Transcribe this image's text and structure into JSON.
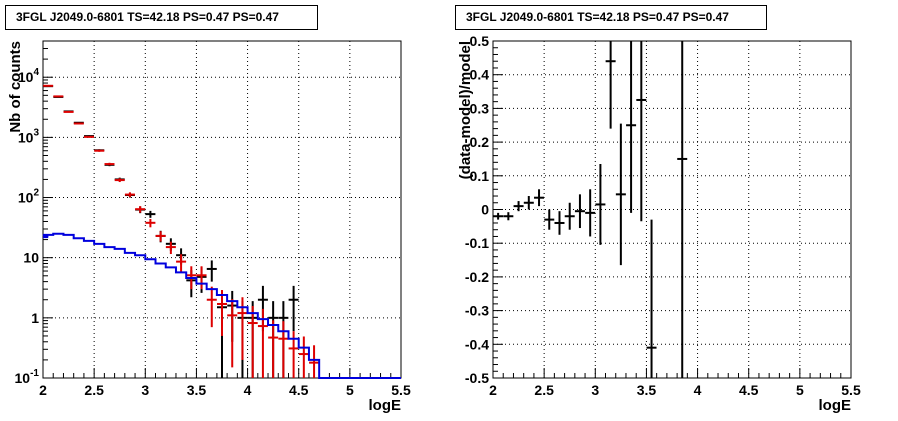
{
  "chart_data": [
    {
      "type": "line",
      "title": "3FGL J2049.0-6801 TS=42.18 PS=0.47 PS=0.47",
      "xlabel": "logE",
      "ylabel": "Nb of counts",
      "xlim": [
        2,
        5.5
      ],
      "ylim": [
        0.1,
        40000
      ],
      "yscale": "log",
      "grid": true,
      "xticks": [
        "2",
        "2.5",
        "3",
        "3.5",
        "4",
        "4.5",
        "5",
        "5.5"
      ],
      "yticks": [
        "10^{-1}",
        "1",
        "10",
        "10^{2}",
        "10^{3}",
        "10^{4}"
      ],
      "series": [
        {
          "kind": "errorbar",
          "color": "#000000",
          "x": [
            2.05,
            2.15,
            2.25,
            2.35,
            2.45,
            2.55,
            2.65,
            2.75,
            2.85,
            2.95,
            3.05,
            3.15,
            3.25,
            3.35,
            3.45,
            3.55,
            3.65,
            3.75,
            3.85,
            3.95,
            4.05,
            4.15,
            4.25,
            4.35,
            4.45
          ],
          "values": [
            7100,
            4700,
            2700,
            1750,
            1050,
            610,
            350,
            200,
            110,
            63,
            53,
            23,
            17,
            11,
            4.2,
            4.8,
            6.5,
            1.5,
            1.6,
            1.0,
            1.0,
            2.0,
            1.0,
            1.0,
            2.0
          ],
          "err_low": [
            70,
            60,
            50,
            40,
            30,
            24,
            18,
            14,
            10,
            8,
            7,
            5,
            4,
            3.3,
            2.0,
            2.2,
            2.5,
            1.5,
            1.2,
            0.9,
            0.9,
            1.4,
            0.9,
            0.9,
            1.4
          ],
          "err_high": [
            70,
            60,
            50,
            40,
            30,
            24,
            18,
            14,
            10,
            8,
            7,
            5,
            4,
            3.3,
            2.0,
            2.2,
            2.5,
            1.2,
            1.2,
            0.9,
            0.9,
            1.4,
            0.9,
            0.9,
            1.4
          ]
        },
        {
          "kind": "errorbar",
          "color": "#dd0000",
          "x": [
            2.05,
            2.15,
            2.25,
            2.35,
            2.45,
            2.55,
            2.65,
            2.75,
            2.85,
            2.95,
            3.05,
            3.15,
            3.25,
            3.35,
            3.45,
            3.55,
            3.65,
            3.75,
            3.85,
            3.95,
            4.05,
            4.15,
            4.25,
            4.35,
            4.45,
            4.55,
            4.65
          ],
          "values": [
            7200,
            4800,
            2650,
            1700,
            1020,
            600,
            360,
            195,
            112,
            64,
            38,
            23,
            15,
            8.6,
            5.1,
            5.1,
            2.0,
            1.7,
            1.1,
            1.2,
            0.82,
            0.73,
            0.47,
            0.45,
            0.31,
            0.25,
            0.18
          ],
          "err_low": [
            70,
            60,
            50,
            40,
            30,
            24,
            18,
            14,
            10,
            8,
            6,
            4.5,
            3.5,
            2.8,
            2.1,
            2.1,
            1.3,
            1.2,
            0.95,
            1.0,
            0.75,
            0.68,
            0.44,
            0.43,
            0.29,
            0.24,
            0.17
          ],
          "err_high": [
            70,
            60,
            50,
            40,
            30,
            24,
            18,
            14,
            10,
            8,
            6,
            4.5,
            3.5,
            2.8,
            2.1,
            2.1,
            1.3,
            1.2,
            0.95,
            1.0,
            0.75,
            0.68,
            0.44,
            0.43,
            0.29,
            0.24,
            0.17
          ]
        },
        {
          "kind": "step",
          "color": "#0000dd",
          "x": [
            2.0,
            2.05,
            2.15,
            2.25,
            2.35,
            2.45,
            2.55,
            2.65,
            2.75,
            2.85,
            2.95,
            3.05,
            3.15,
            3.25,
            3.35,
            3.45,
            3.55,
            3.65,
            3.75,
            3.85,
            3.95,
            4.05,
            4.15,
            4.25,
            4.35,
            4.45,
            4.55,
            4.65,
            4.75,
            4.85,
            4.95,
            5.05,
            5.15,
            5.25,
            5.35,
            5.45
          ],
          "values": [
            22,
            24,
            25,
            24,
            21,
            19,
            17,
            15,
            14,
            12,
            11,
            9.4,
            8.0,
            6.9,
            5.7,
            4.6,
            3.7,
            3.0,
            2.4,
            1.9,
            1.5,
            1.2,
            0.95,
            0.76,
            0.6,
            0.45,
            0.32,
            0.2,
            0.1,
            0.1,
            0.1,
            0.1,
            0.1,
            0.1,
            0.1,
            0.1
          ]
        }
      ]
    },
    {
      "type": "scatter",
      "title": "3FGL J2049.0-6801 TS=42.18 PS=0.47 PS=0.47",
      "xlabel": "logE",
      "ylabel": "(data-model)/model",
      "xlim": [
        2,
        5.5
      ],
      "ylim": [
        -0.5,
        0.5
      ],
      "grid": true,
      "xticks": [
        "2",
        "2.5",
        "3",
        "3.5",
        "4",
        "4.5",
        "5",
        "5.5"
      ],
      "yticks": [
        "-0.5",
        "-0.4",
        "-0.3",
        "-0.2",
        "-0.1",
        "0",
        "0.1",
        "0.2",
        "0.3",
        "0.4",
        "0.5"
      ],
      "series": [
        {
          "kind": "errorbar",
          "color": "#000000",
          "x": [
            2.05,
            2.15,
            2.25,
            2.35,
            2.45,
            2.55,
            2.65,
            2.75,
            2.85,
            2.95,
            3.05,
            3.15,
            3.25,
            3.35,
            3.45,
            3.55,
            3.85
          ],
          "values": [
            -0.02,
            -0.02,
            0.01,
            0.02,
            0.035,
            -0.03,
            -0.04,
            -0.02,
            -0.005,
            -0.01,
            0.015,
            0.44,
            0.045,
            0.25,
            0.325,
            -0.41,
            0.15
          ],
          "err": [
            0.01,
            0.012,
            0.015,
            0.02,
            0.025,
            0.03,
            0.035,
            0.04,
            0.05,
            0.07,
            0.12,
            0.2,
            0.21,
            0.26,
            0.36,
            0.38,
            0.95
          ]
        }
      ]
    }
  ]
}
